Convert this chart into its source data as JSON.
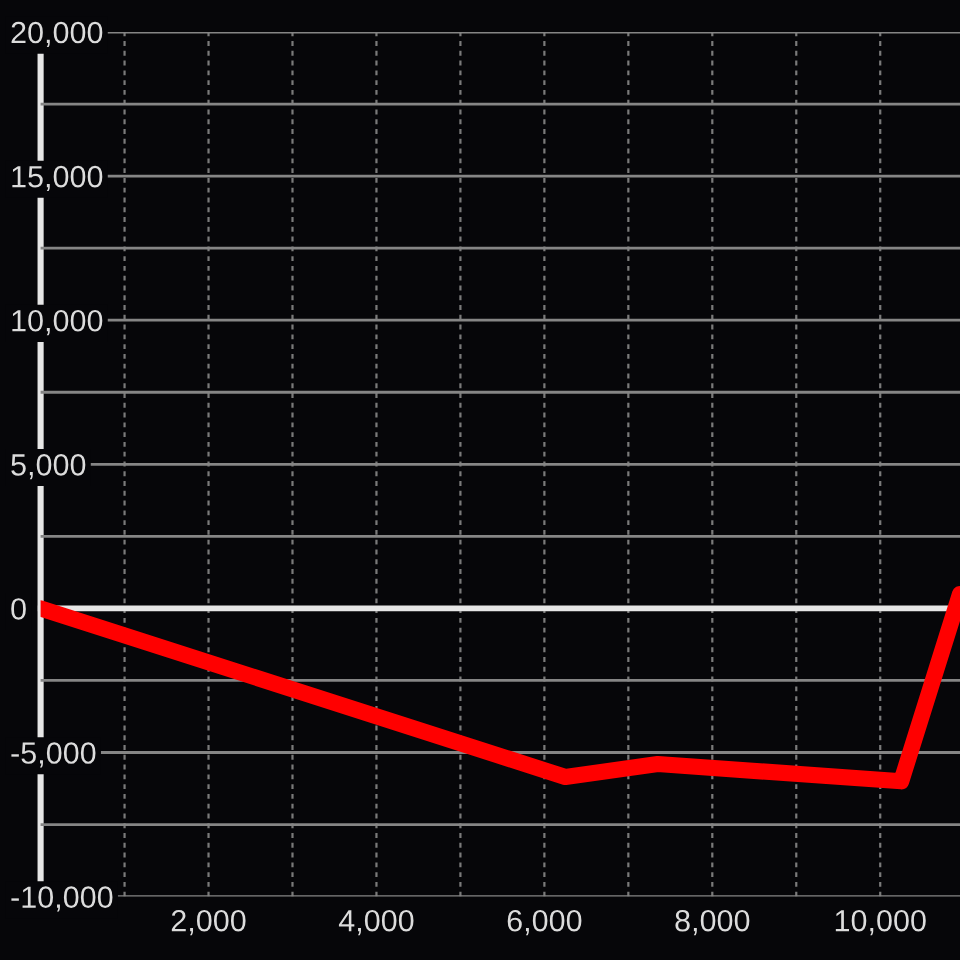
{
  "chart_data": {
    "type": "line",
    "x": [
      0,
      6250,
      7350,
      10250,
      10950
    ],
    "series": [
      {
        "color": "#ff0000",
        "values": [
          0,
          -5850,
          -5400,
          -6000,
          500
        ]
      }
    ],
    "xlim": [
      0,
      10950
    ],
    "ylim": [
      -10000,
      20000
    ],
    "xticks": [
      {
        "value": 1000,
        "label": null
      },
      {
        "value": 2000,
        "label": "2,000"
      },
      {
        "value": 3000,
        "label": null
      },
      {
        "value": 4000,
        "label": "4,000"
      },
      {
        "value": 5000,
        "label": null
      },
      {
        "value": 6000,
        "label": "6,000"
      },
      {
        "value": 7000,
        "label": null
      },
      {
        "value": 8000,
        "label": "8,000"
      },
      {
        "value": 9000,
        "label": null
      },
      {
        "value": 10000,
        "label": "10,000"
      }
    ],
    "yticks": [
      {
        "value": -10000,
        "label": "-10,000"
      },
      {
        "value": -7500,
        "label": null
      },
      {
        "value": -5000,
        "label": "-5,000"
      },
      {
        "value": -2500,
        "label": null
      },
      {
        "value": 0,
        "label": "0"
      },
      {
        "value": 2500,
        "label": null
      },
      {
        "value": 5000,
        "label": "5,000"
      },
      {
        "value": 7500,
        "label": null
      },
      {
        "value": 10000,
        "label": "10,000"
      },
      {
        "value": 12500,
        "label": null
      },
      {
        "value": 15000,
        "label": "15,000"
      },
      {
        "value": 17500,
        "label": null
      },
      {
        "value": 20000,
        "label": "20,000"
      }
    ],
    "grid": true,
    "line_style": "solid"
  }
}
